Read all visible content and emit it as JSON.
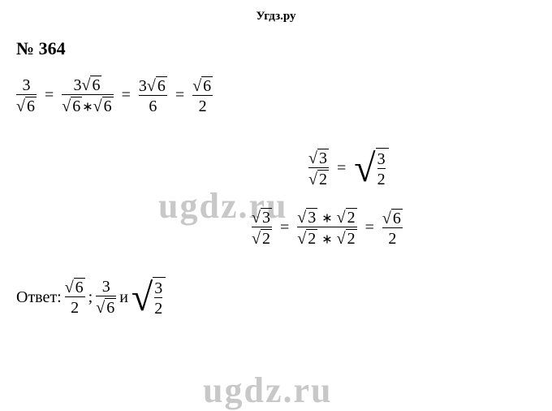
{
  "header": "Угдз.ру",
  "problem_label": "№ 364",
  "watermark_text": "ugdz.ru",
  "line1": {
    "f1_num": "3",
    "f1_den_rad": "6",
    "f2_num_coef": "3",
    "f2_num_rad": "6",
    "f2_den_left_rad": "6",
    "f2_den_op": "∗",
    "f2_den_right_rad": "6",
    "f3_num_coef": "3",
    "f3_num_rad": "6",
    "f3_den": "6",
    "f4_num_rad": "6",
    "f4_den": "2"
  },
  "line2": {
    "lhs_num_rad": "3",
    "lhs_den_rad": "2",
    "rhs_inner_num": "3",
    "rhs_inner_den": "2"
  },
  "line3": {
    "f1_num_rad": "3",
    "f1_den_rad": "2",
    "f2_num_left_rad": "3",
    "f2_num_op": "∗",
    "f2_num_right_rad": "2",
    "f2_den_left_rad": "2",
    "f2_den_op": "∗",
    "f2_den_right_rad": "2",
    "f3_num_rad": "6",
    "f3_den": "2"
  },
  "answer": {
    "label": "Ответ:",
    "t1_num_rad": "6",
    "t1_den": "2",
    "sep1": "; ",
    "t2_num": "3",
    "t2_den_rad": "6",
    "sep2": " и ",
    "t3_inner_num": "3",
    "t3_inner_den": "2"
  },
  "colors": {
    "text": "#000000",
    "background": "#ffffff",
    "watermark": "#c8c8c8"
  },
  "fonts": {
    "body_family": "Times New Roman",
    "header_size_pt": 11,
    "problem_size_pt": 16,
    "math_size_pt": 15,
    "watermark_size_pt": 33
  }
}
